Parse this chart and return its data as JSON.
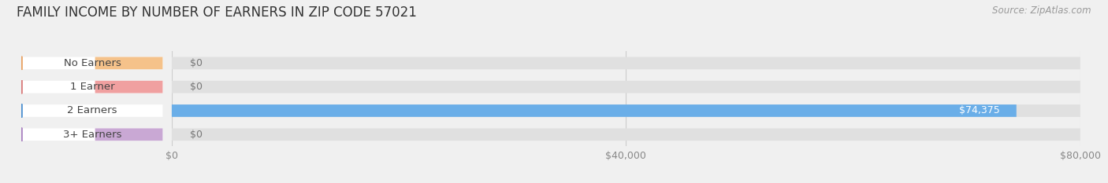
{
  "title": "FAMILY INCOME BY NUMBER OF EARNERS IN ZIP CODE 57021",
  "source_text": "Source: ZipAtlas.com",
  "categories": [
    "No Earners",
    "1 Earner",
    "2 Earners",
    "3+ Earners"
  ],
  "values": [
    0,
    0,
    74375,
    0
  ],
  "bar_colors": [
    "#f5c28a",
    "#f0a0a0",
    "#6aaee8",
    "#c9a8d4"
  ],
  "circle_colors": [
    "#e8a060",
    "#d87878",
    "#4a8fd0",
    "#a880c0"
  ],
  "background_color": "#f0f0f0",
  "bar_bg_color": "#e0e0e0",
  "xlim": [
    0,
    80000
  ],
  "xticks": [
    0,
    40000,
    80000
  ],
  "xticklabels": [
    "$0",
    "$40,000",
    "$80,000"
  ],
  "value_label_zero": "$0",
  "value_label_nonzero": "$74,375",
  "bar_height": 0.52,
  "title_fontsize": 12,
  "tick_fontsize": 9,
  "label_fontsize": 9.5,
  "value_fontsize": 9,
  "source_fontsize": 8.5
}
